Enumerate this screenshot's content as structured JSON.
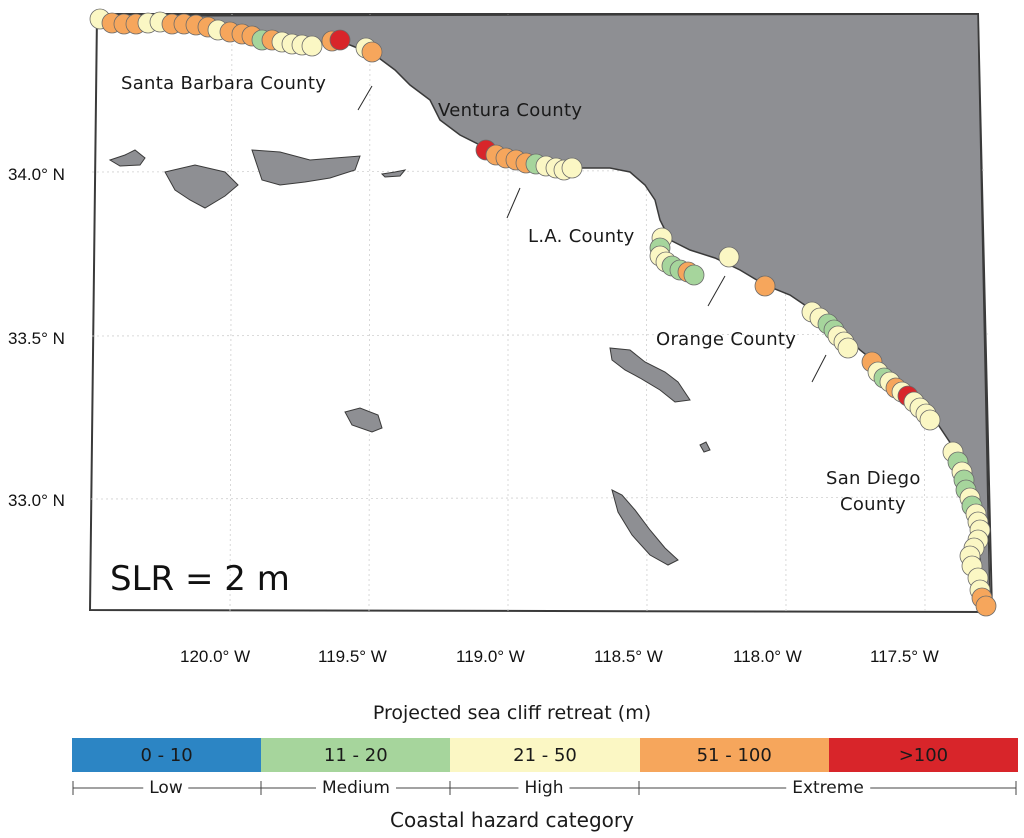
{
  "map": {
    "latitude_labels": [
      "34.0° N",
      "33.5° N",
      "33.0° N"
    ],
    "longitude_labels": [
      "120.0° W",
      "119.5° W",
      "119.0° W",
      "118.5° W",
      "118.0° W",
      "117.5° W"
    ],
    "counties": [
      "Santa Barbara County",
      "Ventura County",
      "L.A. County",
      "Orange County",
      "San Diego",
      "County"
    ],
    "scenario_label": "SLR = 2 m",
    "colors": {
      "land": "#8e8f93",
      "ocean": "#ffffff",
      "low": "#2c85c4",
      "medium": "#a6d59c",
      "high": "#fbf7c4",
      "extreme_orange": "#f6a65c",
      "extreme_red": "#d8252a"
    }
  },
  "legend": {
    "title": "Projected sea cliff retreat (m)",
    "bins": [
      {
        "label": "0 - 10",
        "color": "#2c85c4"
      },
      {
        "label": "11 - 20",
        "color": "#a6d59c"
      },
      {
        "label": "21 - 50",
        "color": "#fbf7c4"
      },
      {
        "label": "51 - 100",
        "color": "#f6a65c"
      },
      {
        "label": ">100",
        "color": "#d8252a"
      }
    ],
    "categories": [
      "Low",
      "Medium",
      "High",
      "Extreme"
    ],
    "footer": "Coastal hazard category"
  }
}
